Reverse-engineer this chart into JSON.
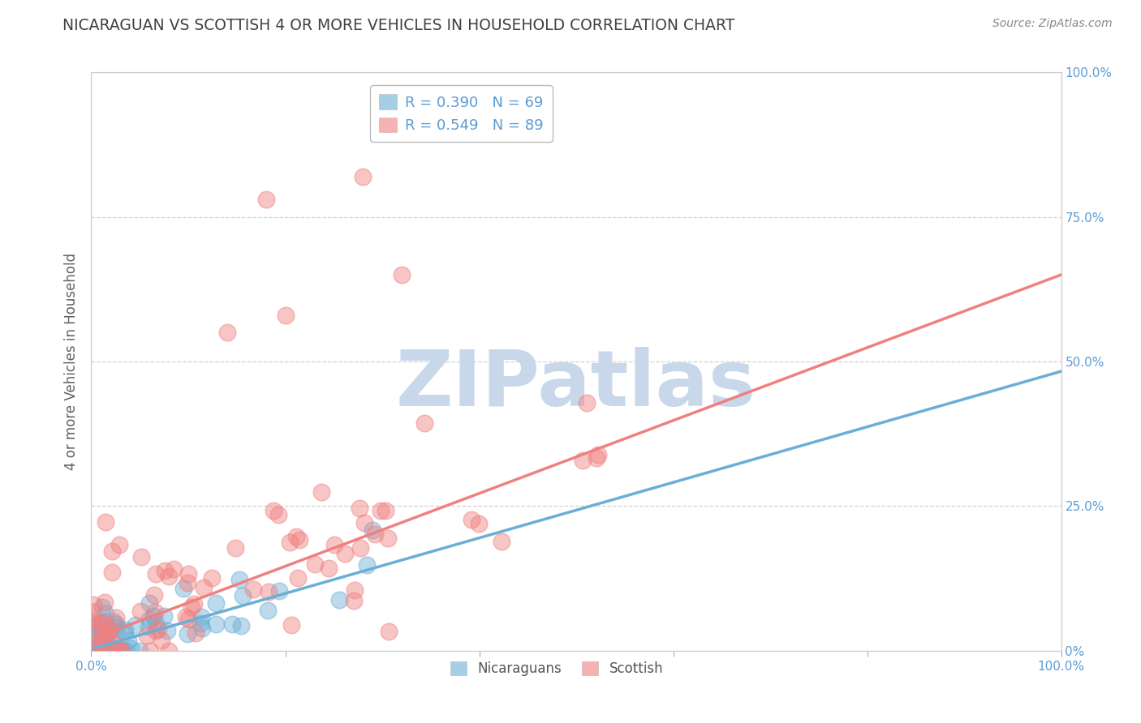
{
  "title": "NICARAGUAN VS SCOTTISH 4 OR MORE VEHICLES IN HOUSEHOLD CORRELATION CHART",
  "source_text": "Source: ZipAtlas.com",
  "ylabel": "4 or more Vehicles in Household",
  "xlim": [
    0.0,
    1.0
  ],
  "ylim": [
    0.0,
    1.0
  ],
  "nicaraguan_color": "#6baed6",
  "scottish_color": "#f08080",
  "nicaraguan_R": 0.39,
  "nicaraguan_N": 69,
  "scottish_R": 0.549,
  "scottish_N": 89,
  "watermark": "ZIPatlas",
  "watermark_color": "#c8d8ea",
  "background_color": "#ffffff",
  "grid_color": "#cccccc",
  "title_color": "#404040",
  "axis_label_color": "#606060",
  "tick_label_color": "#5b9bd5",
  "legend_R_color": "#5b9bd5",
  "right_ytick_labels": [
    "0%",
    "25.0%",
    "50.0%",
    "75.0%",
    "100.0%"
  ],
  "xtick_labels": [
    "0.0%",
    "100.0%"
  ],
  "nic_trend_intercept": 0.003,
  "nic_trend_slope": 0.48,
  "sco_trend_intercept": 0.02,
  "sco_trend_slope": 0.63
}
